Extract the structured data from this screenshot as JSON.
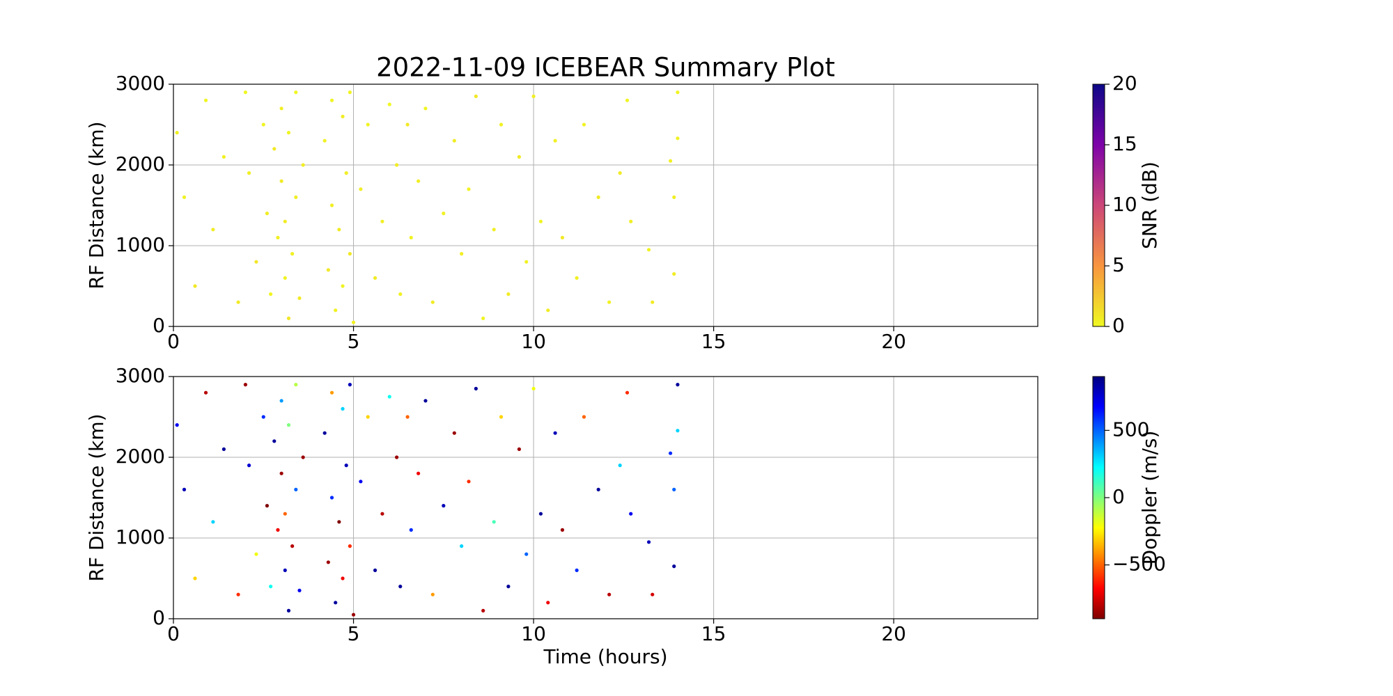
{
  "chart_data": [
    {
      "type": "scatter",
      "title": "2022-11-09 ICEBEAR Summary Plot",
      "ylabel": "RF Distance (km)",
      "xlim": [
        0,
        24
      ],
      "xticks": [
        0,
        5,
        10,
        15,
        20
      ],
      "ylim": [
        0,
        3000
      ],
      "yticks": [
        0,
        1000,
        2000,
        3000
      ],
      "grid": true,
      "x": [
        0.1,
        0.3,
        0.6,
        0.9,
        1.1,
        1.4,
        1.8,
        2.0,
        2.1,
        2.3,
        2.5,
        2.6,
        2.7,
        2.8,
        2.9,
        3.0,
        3.0,
        3.1,
        3.1,
        3.2,
        3.2,
        3.3,
        3.4,
        3.4,
        3.5,
        3.6,
        4.2,
        4.3,
        4.4,
        4.4,
        4.5,
        4.6,
        4.7,
        4.7,
        4.8,
        4.9,
        4.9,
        5.0,
        5.2,
        5.4,
        5.6,
        5.8,
        6.0,
        6.2,
        6.3,
        6.5,
        6.6,
        6.8,
        7.0,
        7.2,
        7.5,
        7.8,
        8.0,
        8.2,
        8.4,
        8.6,
        8.9,
        9.1,
        9.3,
        9.6,
        9.8,
        10.0,
        10.2,
        10.4,
        10.6,
        10.8,
        11.2,
        11.4,
        11.8,
        12.1,
        12.4,
        12.6,
        12.7,
        13.2,
        13.3,
        13.8,
        13.9,
        13.9,
        14.0,
        14.0
      ],
      "y": [
        2400,
        1600,
        500,
        2800,
        1200,
        2100,
        300,
        2900,
        1900,
        800,
        2500,
        1400,
        400,
        2200,
        1100,
        2700,
        1800,
        600,
        1300,
        2400,
        100,
        900,
        1600,
        2900,
        350,
        2000,
        2300,
        700,
        1500,
        2800,
        200,
        1200,
        2600,
        500,
        1900,
        900,
        2900,
        50,
        1700,
        2500,
        600,
        1300,
        2750,
        2000,
        400,
        2500,
        1100,
        1800,
        2700,
        300,
        1400,
        2300,
        900,
        1700,
        2850,
        100,
        1200,
        2500,
        400,
        2100,
        800,
        2850,
        1300,
        200,
        2300,
        1100,
        600,
        2500,
        1600,
        300,
        1900,
        2800,
        1300,
        950,
        300,
        2050,
        650,
        1600,
        2900,
        2330
      ],
      "c": [
        0.5,
        0.3,
        0.8,
        0.2,
        0.6,
        0.4,
        0.7,
        0.1,
        0.5,
        0.9,
        0.3,
        0.6,
        0.2,
        0.8,
        0.4,
        0.5,
        0.7,
        0.3,
        0.6,
        0.2,
        0.9,
        0.4,
        0.5,
        0.1,
        0.7,
        0.6,
        0.3,
        0.8,
        0.5,
        0.2,
        0.4,
        0.7,
        0.6,
        0.3,
        0.5,
        0.8,
        0.2,
        0.4,
        0.6,
        0.3,
        0.7,
        0.5,
        0.1,
        0.6,
        0.4,
        0.8,
        0.3,
        0.5,
        0.2,
        0.7,
        0.4,
        0.6,
        0.5,
        0.3,
        0.8,
        0.2,
        0.5,
        0.4,
        0.6,
        0.7,
        0.3,
        0.5,
        0.2,
        0.6,
        0.4,
        0.8,
        0.5,
        0.3,
        0.7,
        0.4,
        0.6,
        0.2,
        0.5,
        0.3,
        0.7,
        0.4,
        0.6,
        0.5,
        0.2,
        0.3
      ],
      "colorbar": {
        "label": "SNR (dB)",
        "lim": [
          0,
          20
        ],
        "ticks": [
          0,
          5,
          10,
          15,
          20
        ],
        "colormap": "plasma_r"
      }
    },
    {
      "type": "scatter",
      "xlabel": "Time (hours)",
      "ylabel": "RF Distance (km)",
      "xlim": [
        0,
        24
      ],
      "xticks": [
        0,
        5,
        10,
        15,
        20
      ],
      "ylim": [
        0,
        3000
      ],
      "yticks": [
        0,
        1000,
        2000,
        3000
      ],
      "grid": true,
      "x": [
        0.1,
        0.3,
        0.6,
        0.9,
        1.1,
        1.4,
        1.8,
        2.0,
        2.1,
        2.3,
        2.5,
        2.6,
        2.7,
        2.8,
        2.9,
        3.0,
        3.0,
        3.1,
        3.1,
        3.2,
        3.2,
        3.3,
        3.4,
        3.4,
        3.5,
        3.6,
        4.2,
        4.3,
        4.4,
        4.4,
        4.5,
        4.6,
        4.7,
        4.7,
        4.8,
        4.9,
        4.9,
        5.0,
        5.2,
        5.4,
        5.6,
        5.8,
        6.0,
        6.2,
        6.3,
        6.5,
        6.6,
        6.8,
        7.0,
        7.2,
        7.5,
        7.8,
        8.0,
        8.2,
        8.4,
        8.6,
        8.9,
        9.1,
        9.3,
        9.6,
        9.8,
        10.0,
        10.2,
        10.4,
        10.6,
        10.8,
        11.2,
        11.4,
        11.8,
        12.1,
        12.4,
        12.6,
        12.7,
        13.2,
        13.3,
        13.8,
        13.9,
        13.9,
        14.0,
        14.0
      ],
      "y": [
        2400,
        1600,
        500,
        2800,
        1200,
        2100,
        300,
        2900,
        1900,
        800,
        2500,
        1400,
        400,
        2200,
        1100,
        2700,
        1800,
        600,
        1300,
        2400,
        100,
        900,
        1600,
        2900,
        350,
        2000,
        2300,
        700,
        1500,
        2800,
        200,
        1200,
        2600,
        500,
        1900,
        900,
        2900,
        50,
        1700,
        2500,
        600,
        1300,
        2750,
        2000,
        400,
        2500,
        1100,
        1800,
        2700,
        300,
        1400,
        2300,
        900,
        1700,
        2850,
        100,
        1200,
        2500,
        400,
        2100,
        800,
        2850,
        1300,
        200,
        2300,
        1100,
        600,
        2500,
        1600,
        300,
        1900,
        2800,
        1300,
        950,
        300,
        2050,
        650,
        1600,
        2900,
        2330
      ],
      "c": [
        700,
        800,
        -300,
        -800,
        300,
        850,
        -600,
        -850,
        750,
        -200,
        600,
        -900,
        200,
        850,
        -700,
        400,
        -850,
        800,
        -500,
        0,
        850,
        -800,
        500,
        -100,
        700,
        -850,
        850,
        -850,
        600,
        -400,
        850,
        -900,
        300,
        -700,
        800,
        -600,
        800,
        -850,
        700,
        -300,
        850,
        -800,
        200,
        -850,
        850,
        -500,
        600,
        -700,
        850,
        -400,
        800,
        -850,
        300,
        -600,
        850,
        -800,
        100,
        -300,
        850,
        -850,
        500,
        -200,
        850,
        -700,
        800,
        -850,
        600,
        -500,
        850,
        -800,
        300,
        -600,
        700,
        800,
        -750,
        600,
        850,
        500,
        850,
        300
      ],
      "colorbar": {
        "label": "Doppler (m/s)",
        "lim": [
          -900,
          900
        ],
        "ticks": [
          {
            "value": -500,
            "label": "−500"
          },
          0,
          500
        ],
        "colormap": "jet_r"
      }
    }
  ]
}
